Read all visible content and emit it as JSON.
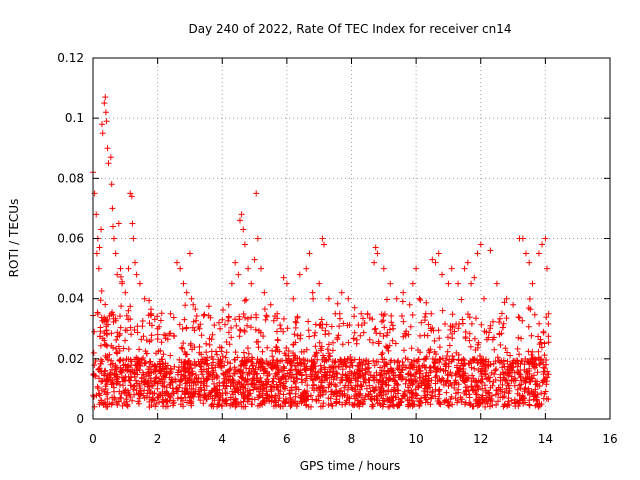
{
  "chart_data": {
    "type": "scatter",
    "title": "Day 240 of 2022, Rate Of TEC Index for receiver cn14",
    "xlabel": "GPS time / hours",
    "ylabel": "ROTI / TECUs",
    "xlim": [
      0,
      16
    ],
    "ylim": [
      0,
      0.12
    ],
    "x_ticks": [
      0,
      2,
      4,
      6,
      8,
      10,
      12,
      14,
      16
    ],
    "y_ticks": [
      0,
      0.02,
      0.04,
      0.06,
      0.08,
      0.1,
      0.12
    ],
    "x_tick_labels": [
      "0",
      "2",
      "4",
      "6",
      "8",
      "10",
      "12",
      "14",
      "16"
    ],
    "y_tick_labels": [
      "0",
      "0.02",
      "0.04",
      "0.06",
      "0.08",
      "0.1",
      "0.12"
    ],
    "grid": true,
    "marker": "+",
    "color": "#ff0000",
    "series": [
      {
        "name": "ROTI",
        "points": [
          [
            0.0,
            0.082
          ],
          [
            0.05,
            0.075
          ],
          [
            0.1,
            0.068
          ],
          [
            0.12,
            0.055
          ],
          [
            0.15,
            0.06
          ],
          [
            0.18,
            0.05
          ],
          [
            0.2,
            0.057
          ],
          [
            0.25,
            0.063
          ],
          [
            0.28,
            0.098
          ],
          [
            0.3,
            0.095
          ],
          [
            0.35,
            0.105
          ],
          [
            0.38,
            0.107
          ],
          [
            0.4,
            0.102
          ],
          [
            0.42,
            0.099
          ],
          [
            0.45,
            0.09
          ],
          [
            0.48,
            0.085
          ],
          [
            0.55,
            0.087
          ],
          [
            0.58,
            0.078
          ],
          [
            0.6,
            0.07
          ],
          [
            0.62,
            0.064
          ],
          [
            0.65,
            0.06
          ],
          [
            0.7,
            0.055
          ],
          [
            0.75,
            0.048
          ],
          [
            0.8,
            0.065
          ],
          [
            0.85,
            0.05
          ],
          [
            0.9,
            0.045
          ],
          [
            1.0,
            0.042
          ],
          [
            1.1,
            0.05
          ],
          [
            1.15,
            0.075
          ],
          [
            1.2,
            0.074
          ],
          [
            1.22,
            0.065
          ],
          [
            1.25,
            0.06
          ],
          [
            1.3,
            0.052
          ],
          [
            1.35,
            0.048
          ],
          [
            1.45,
            0.045
          ],
          [
            1.6,
            0.04
          ],
          [
            1.8,
            0.035
          ],
          [
            2.0,
            0.03
          ],
          [
            2.2,
            0.028
          ],
          [
            2.4,
            0.035
          ],
          [
            2.6,
            0.052
          ],
          [
            2.7,
            0.05
          ],
          [
            2.8,
            0.045
          ],
          [
            2.9,
            0.042
          ],
          [
            3.0,
            0.055
          ],
          [
            3.05,
            0.04
          ],
          [
            3.1,
            0.038
          ],
          [
            3.3,
            0.03
          ],
          [
            3.5,
            0.025
          ],
          [
            3.7,
            0.028
          ],
          [
            3.9,
            0.032
          ],
          [
            4.0,
            0.033
          ],
          [
            4.2,
            0.038
          ],
          [
            4.3,
            0.045
          ],
          [
            4.4,
            0.052
          ],
          [
            4.5,
            0.048
          ],
          [
            4.55,
            0.066
          ],
          [
            4.6,
            0.068
          ],
          [
            4.65,
            0.063
          ],
          [
            4.7,
            0.058
          ],
          [
            4.8,
            0.05
          ],
          [
            4.9,
            0.045
          ],
          [
            5.0,
            0.053
          ],
          [
            5.05,
            0.075
          ],
          [
            5.1,
            0.06
          ],
          [
            5.2,
            0.05
          ],
          [
            5.3,
            0.042
          ],
          [
            5.5,
            0.038
          ],
          [
            5.7,
            0.035
          ],
          [
            5.9,
            0.047
          ],
          [
            6.0,
            0.045
          ],
          [
            6.2,
            0.04
          ],
          [
            6.4,
            0.048
          ],
          [
            6.6,
            0.05
          ],
          [
            6.7,
            0.055
          ],
          [
            6.8,
            0.042
          ],
          [
            7.0,
            0.045
          ],
          [
            7.1,
            0.06
          ],
          [
            7.15,
            0.058
          ],
          [
            7.3,
            0.04
          ],
          [
            7.5,
            0.035
          ],
          [
            7.7,
            0.042
          ],
          [
            7.9,
            0.04
          ],
          [
            8.1,
            0.037
          ],
          [
            8.3,
            0.035
          ],
          [
            8.5,
            0.035
          ],
          [
            8.7,
            0.052
          ],
          [
            8.75,
            0.057
          ],
          [
            8.8,
            0.055
          ],
          [
            9.0,
            0.05
          ],
          [
            9.2,
            0.045
          ],
          [
            9.4,
            0.04
          ],
          [
            9.6,
            0.042
          ],
          [
            9.8,
            0.038
          ],
          [
            9.9,
            0.045
          ],
          [
            10.0,
            0.05
          ],
          [
            10.1,
            0.04
          ],
          [
            10.3,
            0.035
          ],
          [
            10.5,
            0.053
          ],
          [
            10.6,
            0.052
          ],
          [
            10.7,
            0.055
          ],
          [
            10.8,
            0.048
          ],
          [
            11.0,
            0.045
          ],
          [
            11.1,
            0.05
          ],
          [
            11.3,
            0.045
          ],
          [
            11.5,
            0.05
          ],
          [
            11.6,
            0.052
          ],
          [
            11.7,
            0.045
          ],
          [
            11.8,
            0.047
          ],
          [
            11.9,
            0.055
          ],
          [
            12.0,
            0.058
          ],
          [
            12.1,
            0.04
          ],
          [
            12.3,
            0.056
          ],
          [
            12.5,
            0.045
          ],
          [
            12.8,
            0.04
          ],
          [
            13.0,
            0.038
          ],
          [
            13.2,
            0.06
          ],
          [
            13.3,
            0.06
          ],
          [
            13.4,
            0.055
          ],
          [
            13.5,
            0.052
          ],
          [
            13.6,
            0.045
          ],
          [
            13.8,
            0.055
          ],
          [
            13.9,
            0.058
          ],
          [
            14.0,
            0.06
          ],
          [
            14.05,
            0.05
          ],
          [
            14.1,
            0.035
          ]
        ]
      }
    ],
    "density_profile": {
      "note": "Dense band of many overlapping '+' markers across 0–14.1 h",
      "x_range": [
        0.0,
        14.1
      ],
      "band_low": 0.004,
      "band_center": 0.012,
      "band_high": 0.035
    }
  }
}
